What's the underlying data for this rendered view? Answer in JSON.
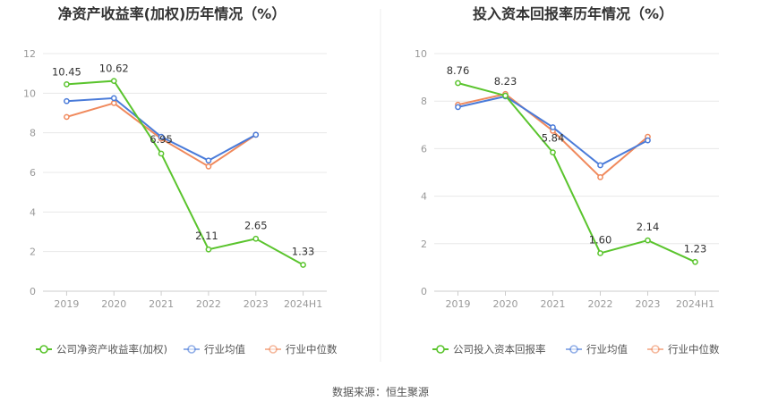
{
  "footer": {
    "source": "数据来源：恒生聚源"
  },
  "colors": {
    "company": "#5ac42d",
    "avg": "#4a7bd9",
    "median": "#f0895c",
    "grid": "#e8e8e8",
    "axis": "#cccccc"
  },
  "chart_data": [
    {
      "type": "line",
      "title": "净资产收益率(加权)历年情况（%）",
      "categories": [
        "2019",
        "2020",
        "2021",
        "2022",
        "2023",
        "2024H1"
      ],
      "ylim": [
        0,
        12
      ],
      "yticks": [
        0,
        2,
        4,
        6,
        8,
        10,
        12
      ],
      "grid": true,
      "legend_position": "bottom-left",
      "series": [
        {
          "name": "公司净资产收益率(加权)",
          "values": [
            10.45,
            10.62,
            6.95,
            2.11,
            2.65,
            1.33
          ],
          "labels": [
            "10.45",
            "10.62",
            "6.95",
            "2.11",
            "2.65",
            "1.33"
          ]
        },
        {
          "name": "行业均值",
          "values": [
            9.6,
            9.75,
            7.8,
            6.6,
            7.9,
            null
          ]
        },
        {
          "name": "行业中位数",
          "values": [
            8.8,
            9.5,
            7.7,
            6.3,
            7.9,
            null
          ]
        }
      ]
    },
    {
      "type": "line",
      "title": "投入资本回报率历年情况（%）",
      "categories": [
        "2019",
        "2020",
        "2021",
        "2022",
        "2023",
        "2024H1"
      ],
      "ylim": [
        0,
        10
      ],
      "yticks": [
        0,
        2,
        4,
        6,
        8,
        10
      ],
      "grid": true,
      "legend_position": "bottom-left",
      "series": [
        {
          "name": "公司投入资本回报率",
          "values": [
            8.76,
            8.23,
            5.84,
            1.6,
            2.14,
            1.23
          ],
          "labels": [
            "8.76",
            "8.23",
            "5.84",
            "1.60",
            "2.14",
            "1.23"
          ]
        },
        {
          "name": "行业均值",
          "values": [
            7.75,
            8.2,
            6.9,
            5.3,
            6.35,
            null
          ]
        },
        {
          "name": "行业中位数",
          "values": [
            7.85,
            8.3,
            6.75,
            4.8,
            6.5,
            null
          ]
        }
      ]
    }
  ]
}
